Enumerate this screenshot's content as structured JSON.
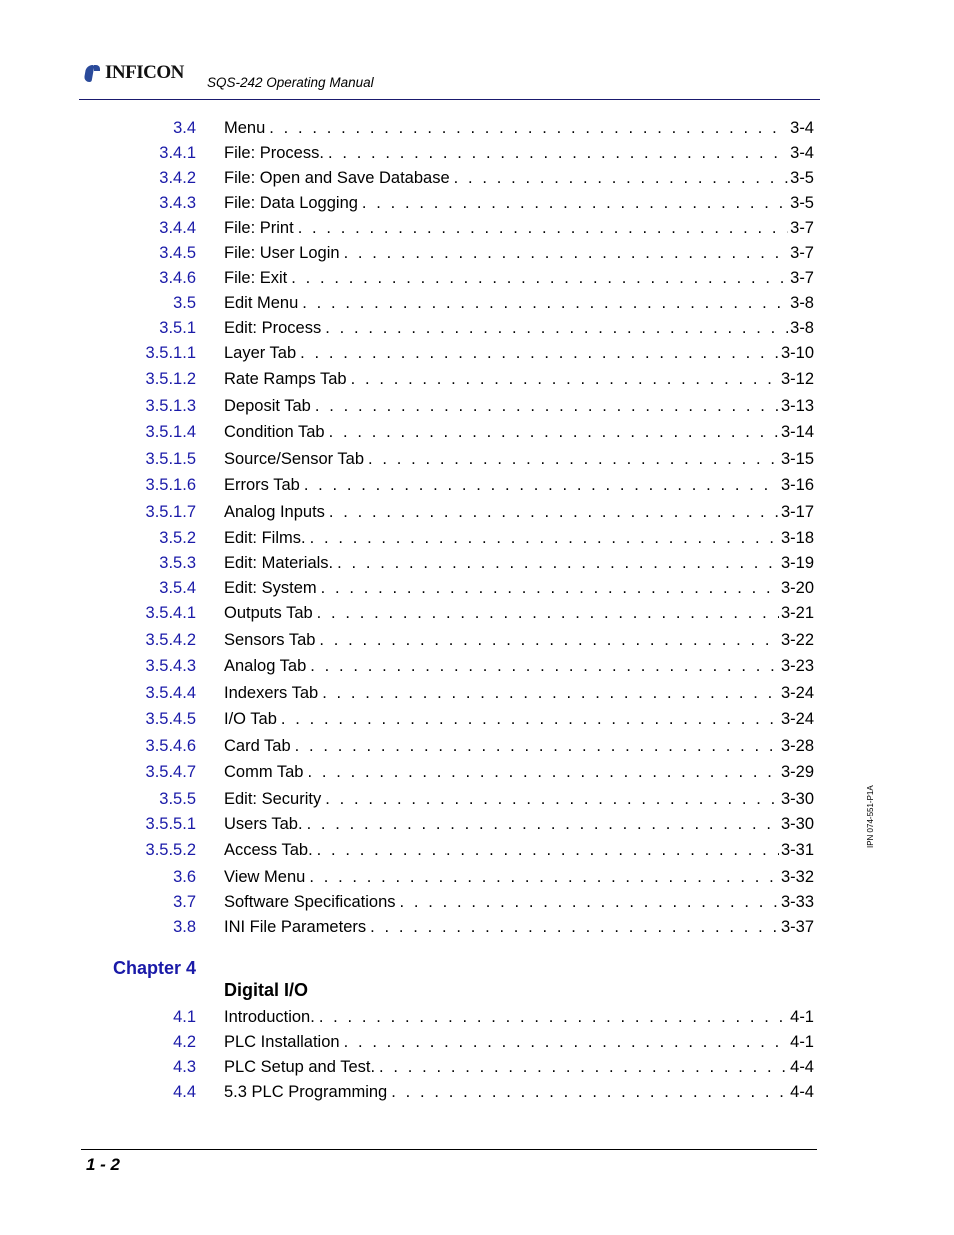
{
  "header": {
    "logo_text": "INFICON",
    "manual_title": "SQS-242 Operating Manual"
  },
  "side_code": "IPN 074-551-P1A",
  "footer": {
    "page_number": "1 - 2"
  },
  "toc_part1": [
    {
      "num": "3.4",
      "label": "Menu",
      "page": "3-4"
    },
    {
      "num": "3.4.1",
      "label": "File: Process.",
      "page": "3-4"
    },
    {
      "num": "3.4.2",
      "label": "File: Open and Save Database",
      "page": "3-5"
    },
    {
      "num": "3.4.3",
      "label": "File: Data Logging",
      "page": "3-5"
    },
    {
      "num": "3.4.4",
      "label": "File: Print",
      "page": "3-7"
    },
    {
      "num": "3.4.5",
      "label": "File: User Login",
      "page": "3-7"
    },
    {
      "num": "3.4.6",
      "label": "File: Exit",
      "page": "3-7"
    },
    {
      "num": "3.5",
      "label": "Edit Menu",
      "page": "3-8"
    },
    {
      "num": "3.5.1",
      "label": "Edit: Process",
      "page": "3-8"
    },
    {
      "num": "3.5.1.1",
      "label": "Layer Tab",
      "page": "3-10"
    },
    {
      "num": "3.5.1.2",
      "label": "Rate Ramps Tab",
      "page": "3-12"
    },
    {
      "num": "3.5.1.3",
      "label": "Deposit Tab",
      "page": "3-13"
    },
    {
      "num": "3.5.1.4",
      "label": "Condition Tab",
      "page": "3-14"
    },
    {
      "num": "3.5.1.5",
      "label": "Source/Sensor Tab",
      "page": "3-15"
    },
    {
      "num": "3.5.1.6",
      "label": "Errors Tab",
      "page": "3-16"
    },
    {
      "num": "3.5.1.7",
      "label": "Analog Inputs",
      "page": "3-17"
    },
    {
      "num": "3.5.2",
      "label": "Edit: Films.",
      "page": "3-18"
    },
    {
      "num": "3.5.3",
      "label": "Edit: Materials.",
      "page": "3-19"
    },
    {
      "num": "3.5.4",
      "label": "Edit: System",
      "page": "3-20"
    },
    {
      "num": "3.5.4.1",
      "label": "Outputs Tab",
      "page": "3-21"
    },
    {
      "num": "3.5.4.2",
      "label": "Sensors Tab",
      "page": "3-22"
    },
    {
      "num": "3.5.4.3",
      "label": "Analog Tab",
      "page": "3-23"
    },
    {
      "num": "3.5.4.4",
      "label": "Indexers Tab",
      "page": "3-24"
    },
    {
      "num": "3.5.4.5",
      "label": "I/O Tab",
      "page": "3-24"
    },
    {
      "num": "3.5.4.6",
      "label": "Card Tab",
      "page": "3-28"
    },
    {
      "num": "3.5.4.7",
      "label": "Comm Tab",
      "page": "3-29"
    },
    {
      "num": "3.5.5",
      "label": "Edit: Security",
      "page": "3-30"
    },
    {
      "num": "3.5.5.1",
      "label": "Users Tab.",
      "page": "3-30"
    },
    {
      "num": "3.5.5.2",
      "label": "Access Tab.",
      "page": "3-31"
    },
    {
      "num": "3.6",
      "label": "View Menu",
      "page": "3-32"
    },
    {
      "num": "3.7",
      "label": "Software Specifications",
      "page": "3-33"
    },
    {
      "num": "3.8",
      "label": "INI File Parameters",
      "page": "3-37"
    }
  ],
  "chapter4": {
    "label": "Chapter 4",
    "title": "Digital I/O"
  },
  "toc_part2": [
    {
      "num": "4.1",
      "label": "Introduction.",
      "page": "4-1"
    },
    {
      "num": "4.2",
      "label": "PLC Installation",
      "page": "4-1"
    },
    {
      "num": "4.3",
      "label": "PLC Setup and Test.",
      "page": "4-4"
    },
    {
      "num": "4.4",
      "label": "5.3 PLC Programming",
      "page": "4-4"
    }
  ]
}
